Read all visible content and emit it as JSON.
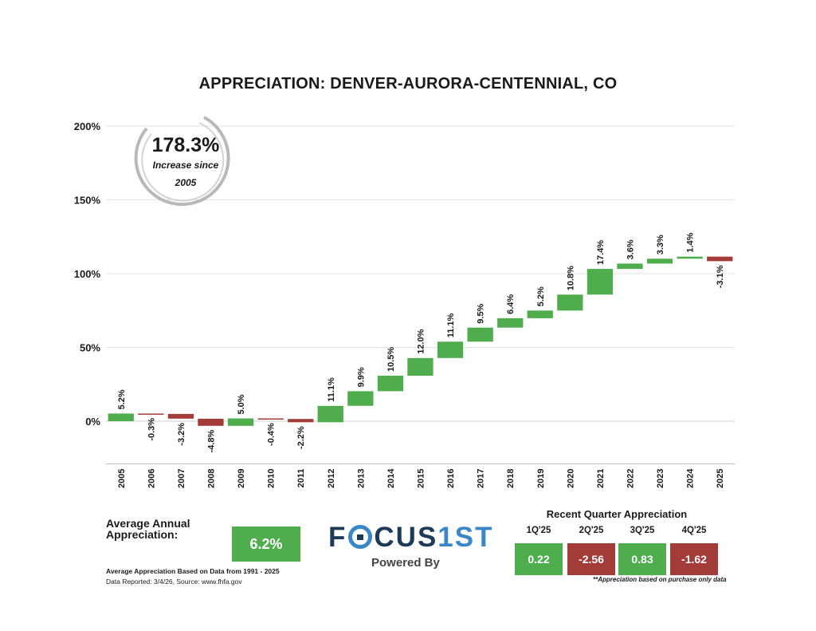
{
  "chart_data": {
    "type": "waterfall",
    "title": "APPRECIATION:  DENVER-AURORA-CENTENNIAL, CO",
    "categories": [
      "2005",
      "2006",
      "2007",
      "2008",
      "2009",
      "2010",
      "2011",
      "2012",
      "2013",
      "2014",
      "2015",
      "2016",
      "2017",
      "2018",
      "2019",
      "2020",
      "2021",
      "2022",
      "2023",
      "2024",
      "2025"
    ],
    "values": [
      5.2,
      -0.3,
      -3.2,
      -4.8,
      5.0,
      -0.4,
      -2.2,
      11.1,
      9.9,
      10.5,
      12.0,
      11.1,
      9.5,
      6.4,
      5.2,
      10.8,
      17.4,
      3.6,
      3.3,
      1.4,
      -3.1
    ],
    "labels": [
      "5.2%",
      "-0.3%",
      "-3.2%",
      "-4.8%",
      "5.0%",
      "-0.4%",
      "-2.2%",
      "11.1%",
      "9.9%",
      "10.5%",
      "12.0%",
      "11.1%",
      "9.5%",
      "6.4%",
      "5.2%",
      "10.8%",
      "17.4%",
      "3.6%",
      "3.3%",
      "1.4%",
      "-3.1%"
    ],
    "yticks": [
      0,
      50,
      100,
      150,
      200
    ],
    "ytick_labels": [
      "0%",
      "50%",
      "100%",
      "150%",
      "200%"
    ],
    "ylim": [
      -30,
      200
    ],
    "colors": {
      "positive": "#4fad4d",
      "negative": "#a33b38",
      "grid": "#e3e3e3",
      "axis": "#bdbdbd"
    }
  },
  "summary_circle": {
    "value": "178.3%",
    "line1": "Increase since",
    "line2": "2005"
  },
  "average": {
    "label": "Average Annual Appreciation:",
    "value": "6.2%",
    "note": "Average Appreciation Based on Data from 1991 - 2025",
    "source": "Data Reported: 3/4/26, Source: www.fhfa.gov"
  },
  "logo": {
    "part1": "F",
    "part2": "CUS",
    "part3": "1ST",
    "powered_by": "Powered By"
  },
  "recent_quarters": {
    "title": "Recent Quarter Appreciation",
    "quarters": [
      {
        "label": "1Q'25",
        "value": "0.22",
        "color": "#4fad4d"
      },
      {
        "label": "2Q'25",
        "value": "-2.56",
        "color": "#a33b38"
      },
      {
        "label": "3Q'25",
        "value": "0.83",
        "color": "#4fad4d"
      },
      {
        "label": "4Q'25",
        "value": "-1.62",
        "color": "#a33b38"
      }
    ],
    "note": "**Appreciation based on purchase only data"
  }
}
